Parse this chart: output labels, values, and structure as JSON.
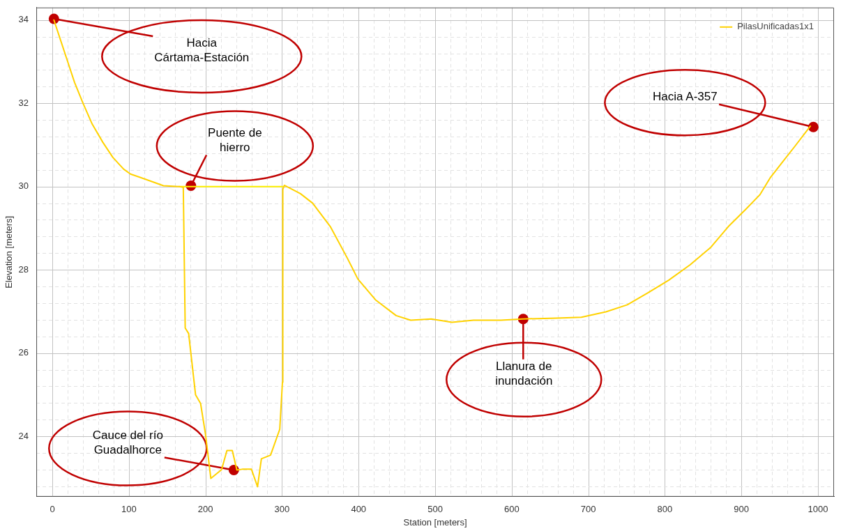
{
  "chart_data": {
    "type": "line",
    "xlabel": "Station [meters]",
    "ylabel": "Elevation [meters]",
    "xlim": [
      -21,
      1021
    ],
    "ylim": [
      22.55,
      34.3
    ],
    "xticks": [
      0,
      {
        "value": 20,
        "label": null
      },
      {
        "value": 40,
        "label": null
      },
      {
        "value": 60,
        "label": null
      },
      {
        "value": 80,
        "label": null
      },
      100,
      {
        "value": 120,
        "label": null
      },
      {
        "value": 140,
        "label": null
      },
      {
        "value": 160,
        "label": null
      },
      {
        "value": 180,
        "label": null
      },
      200,
      {
        "value": 220,
        "label": null
      },
      {
        "value": 240,
        "label": null
      },
      {
        "value": 260,
        "label": null
      },
      {
        "value": 280,
        "label": null
      },
      300,
      {
        "value": 320,
        "label": null
      },
      {
        "value": 340,
        "label": null
      },
      {
        "value": 360,
        "label": null
      },
      {
        "value": 380,
        "label": null
      },
      400,
      {
        "value": 420,
        "label": null
      },
      {
        "value": 440,
        "label": null
      },
      {
        "value": 460,
        "label": null
      },
      {
        "value": 480,
        "label": null
      },
      500,
      {
        "value": 520,
        "label": null
      },
      {
        "value": 540,
        "label": null
      },
      {
        "value": 560,
        "label": null
      },
      {
        "value": 580,
        "label": null
      },
      600,
      {
        "value": 620,
        "label": null
      },
      {
        "value": 640,
        "label": null
      },
      {
        "value": 660,
        "label": null
      },
      {
        "value": 680,
        "label": null
      },
      700,
      {
        "value": 720,
        "label": null
      },
      {
        "value": 740,
        "label": null
      },
      {
        "value": 760,
        "label": null
      },
      {
        "value": 780,
        "label": null
      },
      800,
      {
        "value": 820,
        "label": null
      },
      {
        "value": 840,
        "label": null
      },
      {
        "value": 860,
        "label": null
      },
      {
        "value": 880,
        "label": null
      },
      900,
      {
        "value": 920,
        "label": null
      },
      {
        "value": 940,
        "label": null
      },
      {
        "value": 960,
        "label": null
      },
      {
        "value": 980,
        "label": null
      },
      1000
    ],
    "yticks": [
      {
        "value": 22.8,
        "label": null
      },
      {
        "value": 23.2,
        "label": null
      },
      {
        "value": 23.6,
        "label": null
      },
      24,
      {
        "value": 24.4,
        "label": null
      },
      {
        "value": 24.8,
        "label": null
      },
      {
        "value": 25.2,
        "label": null
      },
      {
        "value": 25.6,
        "label": null
      },
      26,
      {
        "value": 26.4,
        "label": null
      },
      {
        "value": 26.8,
        "label": null
      },
      {
        "value": 27.2,
        "label": null
      },
      {
        "value": 27.6,
        "label": null
      },
      28,
      {
        "value": 28.4,
        "label": null
      },
      {
        "value": 28.8,
        "label": null
      },
      {
        "value": 29.2,
        "label": null
      },
      {
        "value": 29.6,
        "label": null
      },
      30,
      {
        "value": 30.4,
        "label": null
      },
      {
        "value": 30.8,
        "label": null
      },
      {
        "value": 31.2,
        "label": null
      },
      {
        "value": 31.6,
        "label": null
      },
      32,
      {
        "value": 32.4,
        "label": null
      },
      {
        "value": 32.8,
        "label": null
      },
      {
        "value": 33.2,
        "label": null
      },
      {
        "value": 33.6,
        "label": null
      },
      34
    ],
    "grid": true,
    "legend": "top right",
    "marker": "none",
    "line_style": "solid",
    "series": [
      {
        "name": "PilasUnificadas1x1",
        "color": "#ffd200",
        "x": [
          2,
          11,
          20,
          29,
          40,
          52,
          66,
          79,
          93,
          102,
          121,
          145,
          166,
          171,
          173.5,
          178,
          187,
          193.6,
          200,
          207,
          221,
          228,
          235,
          241,
          248,
          260,
          268,
          273,
          285,
          297,
          300.5,
          301,
          303,
          324,
          340,
          363,
          385,
          399,
          422,
          449,
          468,
          495,
          522,
          550,
          586,
          614,
          659,
          691,
          723,
          751,
          778,
          805,
          833,
          860,
          883,
          906,
          924,
          938,
          952,
          970,
          990
        ],
        "values": [
          34.0,
          33.5,
          33.0,
          32.5,
          32.0,
          31.5,
          31.06,
          30.7,
          30.42,
          30.3,
          30.18,
          30.02,
          30.0,
          29.98,
          26.6,
          26.47,
          25.0,
          24.79,
          24.05,
          22.99,
          23.2,
          23.66,
          23.66,
          23.19,
          23.21,
          23.21,
          22.79,
          23.46,
          23.55,
          24.17,
          25.3,
          29.93,
          30.03,
          29.83,
          29.6,
          29.04,
          28.29,
          27.78,
          27.28,
          26.9,
          26.79,
          26.82,
          26.74,
          26.79,
          26.79,
          26.82,
          26.84,
          26.86,
          26.99,
          27.16,
          27.45,
          27.75,
          28.12,
          28.54,
          29.04,
          29.46,
          29.8,
          30.22,
          30.55,
          30.97,
          31.45
        ]
      },
      {
        "color": "#fff200",
        "x": [
          166,
          301
        ],
        "values": [
          30.0,
          30.0
        ]
      }
    ],
    "annotations": [
      {
        "text": "Hacia\nCártama-Estación",
        "x": 2,
        "y": 34.03
      },
      {
        "text": "Puente de\nhierro",
        "x": 181,
        "y": 30.02
      },
      {
        "text": "Cauce del río\nGuadalhorce",
        "x": 237,
        "y": 23.19
      },
      {
        "text": "Llanura de\ninundación",
        "x": 615,
        "y": 26.82
      },
      {
        "text": "Hacia A-357",
        "x": 994,
        "y": 31.43
      }
    ]
  }
}
